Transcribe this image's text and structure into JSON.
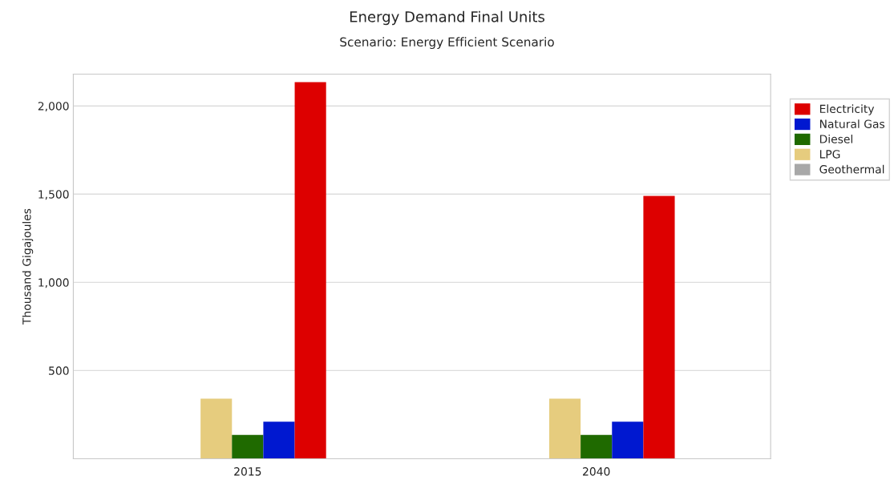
{
  "chart_data": {
    "type": "bar",
    "title": "Energy Demand Final Units",
    "subtitle": "Scenario: Energy Efficient Scenario",
    "ylabel": "Thousand Gigajoules",
    "categories": [
      "2015",
      "2040"
    ],
    "series": [
      {
        "name": "Electricity",
        "color": "#dd0000",
        "values": [
          2135,
          1490
        ]
      },
      {
        "name": "Natural Gas",
        "color": "#0018d0",
        "values": [
          210,
          210
        ]
      },
      {
        "name": "Diesel",
        "color": "#1f6a00",
        "values": [
          135,
          135
        ]
      },
      {
        "name": "LPG",
        "color": "#e6cc7e",
        "values": [
          340,
          340
        ]
      },
      {
        "name": "Geothermal",
        "color": "#a8a8a8",
        "values": [
          2,
          2
        ]
      }
    ],
    "ylim": [
      0,
      2180
    ],
    "yticks": [
      500,
      {
        "value": 1000,
        "label": "1,000"
      },
      {
        "value": 1500,
        "label": "1,500"
      },
      {
        "value": 2000,
        "label": "2,000"
      }
    ],
    "grid": "y",
    "legend": "top right"
  }
}
